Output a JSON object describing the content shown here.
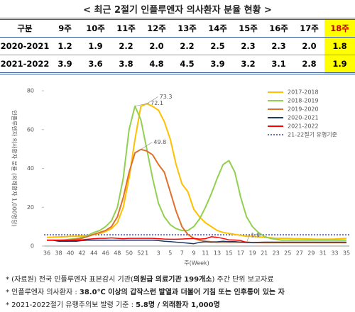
{
  "title": "< 최근 2절기 인플루엔자 의사환자 분율 현황 >",
  "table": {
    "header": [
      "구분",
      "9주",
      "10주",
      "11주",
      "12주",
      "13주",
      "14주",
      "15주",
      "16주",
      "17주",
      "18주"
    ],
    "rows": [
      [
        "2020-2021",
        "1.2",
        "1.9",
        "2.2",
        "2.0",
        "2.2",
        "2.5",
        "2.3",
        "2.3",
        "2.0",
        "1.8"
      ],
      [
        "2021-2022",
        "3.9",
        "3.6",
        "3.8",
        "4.8",
        "4.5",
        "3.9",
        "3.2",
        "3.1",
        "2.8",
        "1.9"
      ]
    ]
  },
  "chart_data": {
    "type": "line",
    "ylabel": "인플루엔자 의사환자 분율 (외래환자 1,000명당)",
    "xlabel": "주(Week)",
    "ylim": [
      0,
      80
    ],
    "yticks": [
      0,
      20,
      40,
      60,
      80
    ],
    "legend": "upper right",
    "categories": [
      "36",
      null,
      "38",
      null,
      "40",
      null,
      "42",
      null,
      "44",
      null,
      "46",
      null,
      "48",
      null,
      "50",
      null,
      "52",
      "1",
      null,
      "3",
      null,
      "5",
      null,
      "7",
      null,
      "9",
      null,
      "11",
      null,
      "13",
      null,
      "15",
      null,
      "17",
      null,
      "19",
      null,
      "21",
      null,
      "23",
      null,
      "25",
      null,
      "27",
      null,
      "29",
      null,
      "31",
      null,
      "33",
      null,
      "35"
    ],
    "series": [
      {
        "name": "2017-2018",
        "color": "#ffc000",
        "values": [
          4.5,
          4.6,
          4.7,
          4.8,
          5,
          5,
          5.2,
          5.5,
          6,
          6.5,
          7.5,
          9,
          12,
          20,
          35,
          55,
          72,
          73.3,
          72,
          70,
          64,
          55,
          42,
          32,
          28,
          19,
          15,
          12,
          10,
          8,
          7,
          6.5,
          6,
          5.5,
          5,
          5,
          4.8,
          4.5,
          4.3,
          4,
          4,
          4,
          3.8,
          3.8,
          3.7,
          3.6,
          3.5,
          3.5,
          3.5,
          3.6,
          3.8,
          4
        ]
      },
      {
        "name": "2018-2019",
        "color": "#92d050",
        "values": [
          3,
          3,
          3,
          3.2,
          3.5,
          3.8,
          4.5,
          5.5,
          7,
          8,
          10,
          13,
          20,
          35,
          60,
          72.1,
          65,
          50,
          35,
          22,
          15,
          11,
          9,
          8,
          8,
          10,
          14,
          20,
          27,
          35,
          42,
          44,
          38,
          25,
          15,
          10,
          7,
          5,
          4,
          3.5,
          3,
          3,
          3,
          3,
          3,
          3,
          3,
          3,
          3,
          3,
          3,
          3
        ]
      },
      {
        "name": "2019-2020",
        "color": "#e0702a",
        "values": [
          3,
          3,
          3,
          3,
          3.2,
          3.5,
          4,
          5,
          6,
          7,
          8,
          10,
          15,
          25,
          38,
          48,
          49.8,
          49,
          47,
          42,
          38,
          28,
          18,
          10,
          6,
          4,
          3,
          2.5,
          2.2,
          2,
          2,
          2,
          2,
          2,
          2,
          1.8,
          1.8,
          1.8,
          1.8,
          1.8,
          1.8,
          1.8,
          1.8,
          1.8,
          1.8,
          1.8,
          1.8,
          1.8,
          1.8,
          1.8,
          1.8,
          1.8
        ]
      },
      {
        "name": "2020-2021",
        "color": "#1f3864",
        "values": [
          3,
          3,
          2.5,
          2.5,
          2.5,
          2.5,
          2.8,
          3,
          3,
          3,
          3,
          3,
          3,
          3,
          3,
          3,
          3,
          3,
          3,
          2.8,
          2.5,
          2.3,
          2,
          1.8,
          1.5,
          1.2,
          1.9,
          2.2,
          2.0,
          2.2,
          2.5,
          2.3,
          2.3,
          2.0,
          1.8,
          1.8,
          1.9,
          2,
          2,
          2,
          2,
          2,
          2,
          2,
          2,
          2,
          2,
          2,
          2,
          2,
          2,
          2
        ]
      },
      {
        "name": "2021-2022",
        "color": "#ff0000",
        "values": [
          3,
          3,
          3,
          3,
          3,
          3,
          3.2,
          3.5,
          3.8,
          4,
          4,
          4.2,
          4,
          3.8,
          4,
          4,
          4,
          4,
          4,
          3.8,
          3.6,
          3.5,
          3.5,
          3.6,
          3.8,
          3.9,
          3.6,
          3.8,
          4.8,
          4.5,
          3.9,
          3.2,
          3.1,
          2.8,
          1.9,
          null,
          null,
          null,
          null,
          null,
          null,
          null,
          null,
          null,
          null,
          null,
          null,
          null,
          null,
          null,
          null,
          null
        ]
      }
    ],
    "threshold": {
      "name": "21-22절기 유행기준",
      "value": 5.8,
      "color": "#3344aa"
    }
  },
  "notes": [
    [
      "* (자료원) 전국 인플루엔자 표본감시 기관(",
      "의원급 의료기관 199개소",
      ") 주간 단위 보고자료"
    ],
    [
      "* 인플루엔자 의사환자 : ",
      "38.0℃ 이상의 갑작스런 발열과 더불어 기침 또는 인후통이 있는 자"
    ],
    [
      "* 2021-2022절기 유행주의보 발령 기준 : ",
      "5.8명 / 외래환자 1,000명"
    ]
  ]
}
